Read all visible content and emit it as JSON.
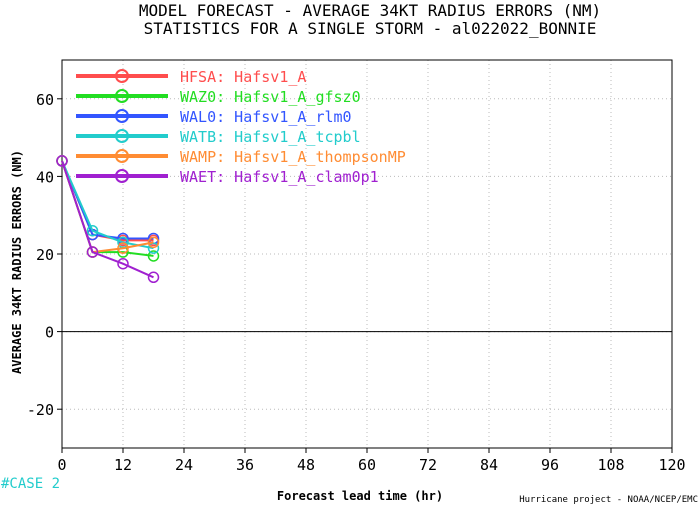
{
  "chart_data": {
    "type": "line",
    "title_lines": [
      "MODEL FORECAST - AVERAGE 34KT RADIUS ERRORS (NM)",
      "STATISTICS FOR A SINGLE STORM - al022022_BONNIE"
    ],
    "xlabel": "Forecast lead time (hr)",
    "ylabel": "AVERAGE 34KT RADIUS ERRORS (NM)",
    "xlim": [
      0,
      120
    ],
    "ylim": [
      -30,
      70
    ],
    "xticks": [
      0,
      12,
      24,
      36,
      48,
      60,
      72,
      84,
      96,
      108,
      120
    ],
    "yticks": [
      -20,
      0,
      20,
      40,
      60
    ],
    "grid": true,
    "legend_position": "top-left",
    "case_label": "#CASE 2",
    "credit": "Hurricane project - NOAA/NCEP/EMC",
    "series": [
      {
        "name": "HFSA: Hafsv1_A",
        "color": "#ff4d4d",
        "x": [
          0,
          6,
          12,
          18
        ],
        "y": [
          44,
          25,
          23.5,
          23.5
        ]
      },
      {
        "name": "WAZ0: Hafsv1_A_gfsz0",
        "color": "#22dd22",
        "x": [
          0,
          6,
          12,
          18
        ],
        "y": [
          44,
          20.5,
          20.5,
          19.5
        ]
      },
      {
        "name": "WAL0: Hafsv1_A_rlm0",
        "color": "#3355ff",
        "x": [
          0,
          6,
          12,
          18
        ],
        "y": [
          44,
          25,
          24,
          24
        ]
      },
      {
        "name": "WATB: Hafsv1_A_tcpbl",
        "color": "#22cccc",
        "x": [
          0,
          6,
          12,
          18
        ],
        "y": [
          44,
          26,
          23,
          21.5
        ]
      },
      {
        "name": "WAMP: Hafsv1_A_thompsonMP",
        "color": "#ff8c33",
        "x": [
          0,
          6,
          12,
          18
        ],
        "y": [
          44,
          20.5,
          21.5,
          23
        ]
      },
      {
        "name": "WAET: Hafsv1_A_clam0p1",
        "color": "#a020d0",
        "x": [
          0,
          6,
          12,
          18
        ],
        "y": [
          44,
          20.5,
          17.5,
          14
        ]
      }
    ]
  }
}
